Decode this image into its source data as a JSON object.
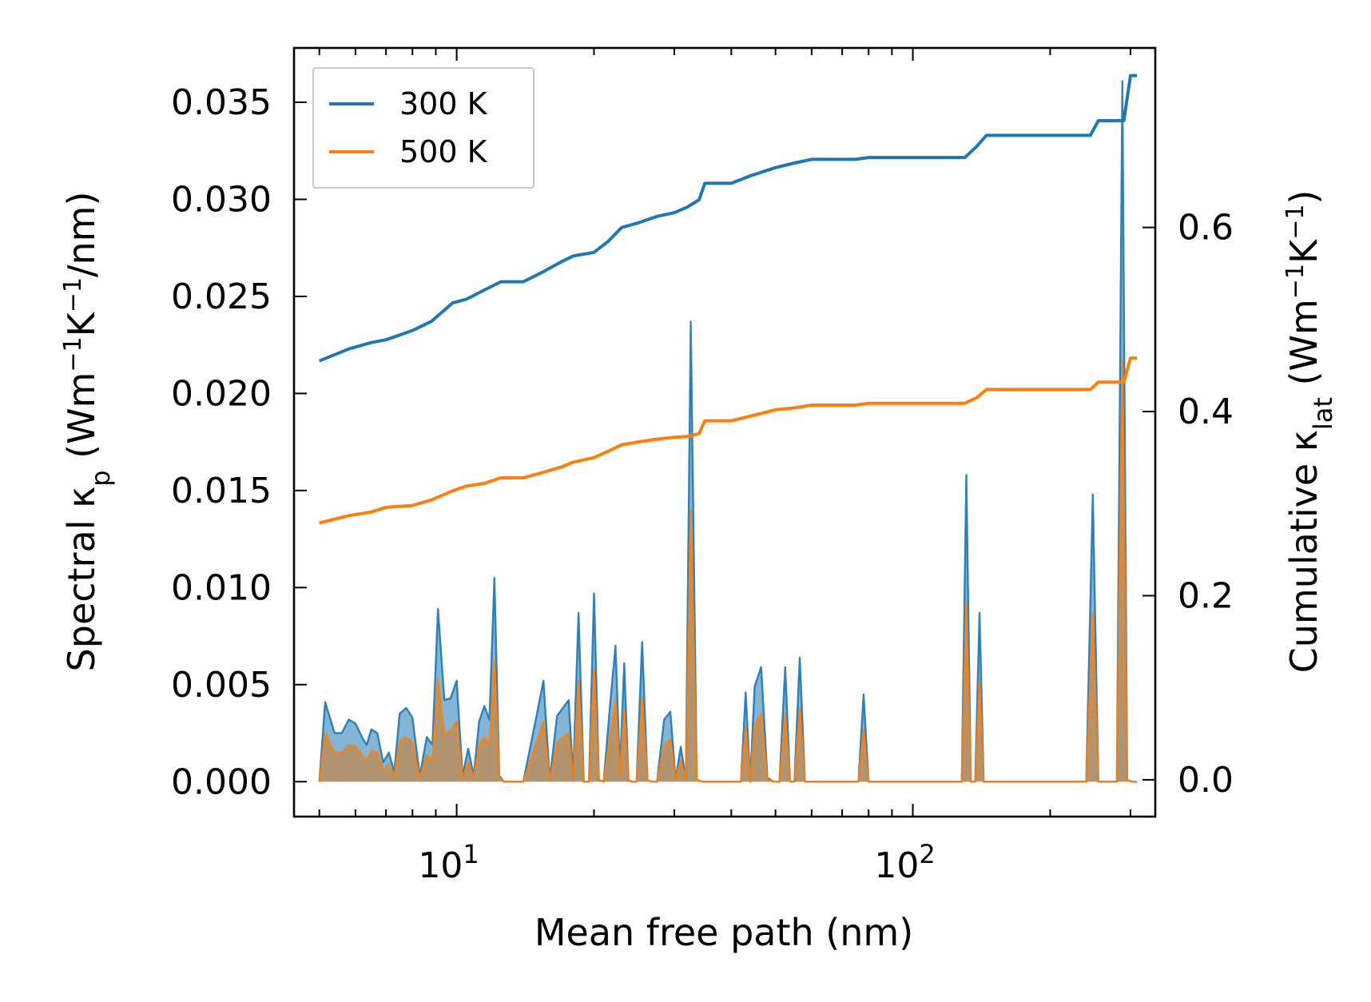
{
  "chart_data": {
    "type": "line",
    "title": "",
    "xlabel": "Mean free path (nm)",
    "xscale": "log",
    "xlim": [
      4.4,
      340
    ],
    "x_ticks": [
      {
        "base": "10",
        "exp": "1",
        "value": 10
      },
      {
        "base": "10",
        "exp": "2",
        "value": 100
      }
    ],
    "y_left": {
      "label_main": "Spectral κ",
      "label_sub": "p",
      "label_unit": "(Wm",
      "label_unit2": "K",
      "label_unit3": "/nm)",
      "exp": "−1",
      "lim": [
        -0.0018,
        0.0378
      ],
      "ticks": [
        "0.000",
        "0.005",
        "0.010",
        "0.015",
        "0.020",
        "0.025",
        "0.030",
        "0.035"
      ],
      "tick_values": [
        0,
        0.005,
        0.01,
        0.015,
        0.02,
        0.025,
        0.03,
        0.035
      ]
    },
    "y_right": {
      "label_main": "Cumulative κ",
      "label_sub": "lat",
      "label_unit": "(Wm",
      "label_unit2": "K",
      "label_unit3": ")",
      "exp": "−1",
      "lim": [
        -0.04,
        0.795
      ],
      "ticks": [
        "0.0",
        "0.2",
        "0.4",
        "0.6"
      ],
      "tick_values": [
        0,
        0.2,
        0.4,
        0.6
      ]
    },
    "legend": {
      "position": "top-left",
      "entries": [
        {
          "label": "300 K",
          "color": "#1f77b4"
        },
        {
          "label": "500 K",
          "color": "#ff7f0e"
        }
      ]
    },
    "series": [
      {
        "name": "300 K",
        "color": "#1f77b4",
        "axis": "right",
        "kind": "cumulative",
        "x": [
          5.0,
          5.8,
          6.5,
          7.0,
          8.0,
          8.8,
          9.8,
          10.5,
          11.5,
          12.5,
          14.0,
          15.5,
          17.0,
          18.0,
          20.0,
          21.5,
          23.0,
          25.0,
          27.5,
          30.0,
          32.0,
          34.0,
          35.0,
          40.0,
          44.0,
          50.0,
          55.0,
          60.0,
          75.0,
          80.0,
          100.0,
          130.0,
          138.0,
          145.0,
          155.0,
          200.0,
          245.0,
          255.0,
          290.0,
          300.0,
          310.0
        ],
        "values": [
          0.455,
          0.468,
          0.475,
          0.478,
          0.488,
          0.498,
          0.518,
          0.522,
          0.532,
          0.541,
          0.541,
          0.552,
          0.563,
          0.569,
          0.573,
          0.585,
          0.6,
          0.605,
          0.612,
          0.616,
          0.622,
          0.63,
          0.648,
          0.648,
          0.656,
          0.665,
          0.67,
          0.674,
          0.674,
          0.676,
          0.676,
          0.676,
          0.688,
          0.7,
          0.7,
          0.7,
          0.7,
          0.716,
          0.716,
          0.765,
          0.765
        ]
      },
      {
        "name": "500 K",
        "color": "#ff7f0e",
        "axis": "right",
        "kind": "cumulative",
        "x": [
          5.0,
          5.8,
          6.5,
          7.0,
          8.0,
          8.8,
          9.8,
          10.5,
          11.5,
          12.5,
          14.0,
          15.5,
          17.0,
          18.0,
          20.0,
          21.5,
          23.0,
          25.0,
          27.5,
          30.0,
          32.0,
          34.0,
          35.0,
          40.0,
          44.0,
          50.0,
          55.0,
          60.0,
          75.0,
          80.0,
          100.0,
          130.0,
          138.0,
          145.0,
          155.0,
          200.0,
          245.0,
          255.0,
          290.0,
          300.0,
          310.0
        ],
        "values": [
          0.279,
          0.287,
          0.291,
          0.296,
          0.298,
          0.304,
          0.314,
          0.319,
          0.322,
          0.328,
          0.328,
          0.334,
          0.34,
          0.345,
          0.35,
          0.357,
          0.364,
          0.367,
          0.37,
          0.372,
          0.373,
          0.376,
          0.39,
          0.39,
          0.395,
          0.402,
          0.404,
          0.407,
          0.407,
          0.409,
          0.409,
          0.409,
          0.415,
          0.424,
          0.424,
          0.424,
          0.424,
          0.432,
          0.432,
          0.458,
          0.458
        ]
      },
      {
        "name": "300 K",
        "color": "#1f77b4",
        "axis": "left",
        "kind": "spectral",
        "x": [
          5.0,
          5.15,
          5.4,
          5.6,
          5.8,
          6.0,
          6.2,
          6.35,
          6.5,
          6.7,
          6.9,
          7.1,
          7.3,
          7.5,
          7.75,
          8.0,
          8.3,
          8.6,
          8.85,
          9.1,
          9.4,
          9.7,
          10.0,
          10.3,
          10.6,
          10.9,
          11.2,
          11.5,
          11.8,
          12.1,
          12.4,
          12.7,
          13.0,
          14.0,
          15.0,
          15.5,
          16.0,
          16.6,
          17.1,
          17.6,
          18.0,
          18.5,
          19.0,
          19.5,
          20.0,
          20.5,
          21.0,
          21.7,
          22.3,
          22.8,
          23.3,
          23.8,
          24.2,
          24.8,
          25.5,
          26.2,
          26.8,
          27.5,
          28.5,
          29.4,
          30.2,
          31.0,
          31.8,
          32.6,
          33.6,
          34.6,
          35.4,
          36.0,
          37.0,
          42.0,
          43.0,
          44.0,
          45.0,
          46.5,
          48.0,
          49.5,
          51.0,
          52.5,
          53.8,
          55.0,
          56.5,
          58.0,
          59.5,
          61.0,
          76.0,
          78.0,
          80.0,
          82.0,
          128.0,
          131.0,
          134.0,
          137.0,
          140.0,
          143.0,
          146.0,
          148.0,
          150.0,
          240.0,
          248.0,
          255.0,
          262.0,
          280.0,
          288.0,
          295.0,
          302.0,
          310.0
        ],
        "values": [
          0,
          0.0041,
          0.0025,
          0.0025,
          0.0032,
          0.003,
          0.0023,
          0.0019,
          0.0027,
          0.0025,
          0.001,
          0.0015,
          0.0005,
          0.0035,
          0.0038,
          0.0033,
          0.0003,
          0.0023,
          0.0019,
          0.0089,
          0.0042,
          0.0043,
          0.0052,
          0.0003,
          0.0017,
          0.0003,
          0.0031,
          0.0039,
          0.0032,
          0.0105,
          0.0003,
          0,
          0,
          0,
          0.0035,
          0.0052,
          0.0001,
          0.0034,
          0.0038,
          0.0042,
          0.0002,
          0.0087,
          0,
          0,
          0.0097,
          0.0001,
          0,
          0.004,
          0.007,
          0.0005,
          0.0061,
          0.0001,
          0,
          0,
          0.0072,
          0.0001,
          0,
          0,
          0.0032,
          0.0036,
          0.0001,
          0.0018,
          0.0001,
          0.0237,
          0.0001,
          0,
          0,
          0,
          0,
          0,
          0.0046,
          0,
          0.0049,
          0.0059,
          0.0002,
          0,
          0,
          0.0059,
          0,
          0,
          0.0064,
          0,
          0,
          0,
          0,
          0.0045,
          0,
          0,
          0,
          0.0158,
          0,
          0,
          0.0087,
          0,
          0,
          0,
          0,
          0,
          0.0148,
          0,
          0,
          0,
          0.0361,
          0.0001,
          0,
          0
        ],
        "fill": "#1f77b4"
      },
      {
        "name": "500 K",
        "color": "#ff7f0e",
        "axis": "left",
        "kind": "spectral",
        "x": [
          5.0,
          5.15,
          5.4,
          5.6,
          5.8,
          6.0,
          6.2,
          6.35,
          6.5,
          6.7,
          6.9,
          7.1,
          7.3,
          7.5,
          7.75,
          8.0,
          8.3,
          8.6,
          8.85,
          9.1,
          9.4,
          9.7,
          10.0,
          10.3,
          10.6,
          10.9,
          11.2,
          11.5,
          11.8,
          12.1,
          12.4,
          12.7,
          13.0,
          14.0,
          15.0,
          15.5,
          16.0,
          16.6,
          17.1,
          17.6,
          18.0,
          18.5,
          19.0,
          19.5,
          20.0,
          20.5,
          21.0,
          21.7,
          22.3,
          22.8,
          23.3,
          23.8,
          24.2,
          24.8,
          25.5,
          26.2,
          26.8,
          27.5,
          28.5,
          29.4,
          30.2,
          31.0,
          31.8,
          32.6,
          33.6,
          34.6,
          35.4,
          36.0,
          37.0,
          42.0,
          43.0,
          44.0,
          45.0,
          46.5,
          48.0,
          49.5,
          51.0,
          52.5,
          53.8,
          55.0,
          56.5,
          58.0,
          59.5,
          61.0,
          76.0,
          78.0,
          80.0,
          82.0,
          128.0,
          131.0,
          134.0,
          137.0,
          140.0,
          143.0,
          146.0,
          148.0,
          150.0,
          240.0,
          248.0,
          255.0,
          262.0,
          280.0,
          288.0,
          295.0,
          302.0,
          310.0
        ],
        "values": [
          0,
          0.0025,
          0.0015,
          0.0015,
          0.0019,
          0.0018,
          0.0014,
          0.0011,
          0.0016,
          0.0015,
          0.0006,
          0.0009,
          0.0003,
          0.0021,
          0.0023,
          0.002,
          0.0002,
          0.0014,
          0.0011,
          0.0053,
          0.0025,
          0.0026,
          0.0031,
          0.0002,
          0.001,
          0.0002,
          0.0019,
          0.0023,
          0.0019,
          0.0063,
          0.0002,
          0,
          0,
          0,
          0.0021,
          0.0031,
          0.0001,
          0.002,
          0.0023,
          0.0025,
          0.0001,
          0.0052,
          0,
          0,
          0.0058,
          0.0001,
          0,
          0.0024,
          0.0042,
          0.0003,
          0.0037,
          0.0001,
          0,
          0,
          0.0043,
          0.0001,
          0,
          0,
          0.0019,
          0.0022,
          0.0001,
          0.0011,
          0.0001,
          0.014,
          0.0001,
          0,
          0,
          0,
          0,
          0,
          0.0028,
          0,
          0.0029,
          0.0035,
          0.0001,
          0,
          0,
          0.0035,
          0,
          0,
          0.0038,
          0,
          0,
          0,
          0,
          0.0027,
          0,
          0,
          0,
          0.0092,
          0,
          0,
          0.0052,
          0,
          0,
          0,
          0,
          0,
          0.0087,
          0,
          0,
          0,
          0.0217,
          0.0001,
          0,
          0
        ],
        "fill": "#c08a4e"
      }
    ]
  }
}
